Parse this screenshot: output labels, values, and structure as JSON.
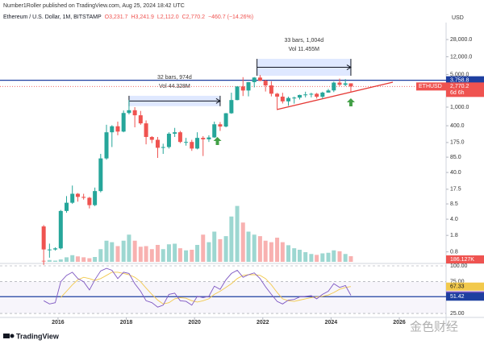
{
  "header": {
    "publisher": "Number1Roller published on TradingView.com, Aug 25, 2024 18:42 UTC",
    "symbol": "Ethereum / U.S. Dollar, 1M, BITSTAMP",
    "ohlc": [
      "O3,231.7",
      "H3,241.9",
      "L2,112.0",
      "C2,770.2",
      "−460.7 (−14.26%)"
    ]
  },
  "footer": {
    "brand": "TradingView",
    "watermark": "金色财经"
  },
  "chart_data": {
    "type": "candlestick",
    "currency": "USD",
    "log_scale": true,
    "grid": false,
    "colors": {
      "up": "#26a69a",
      "down": "#ef5350"
    },
    "xlim": [
      2014.3,
      2027.37
    ],
    "xticks": [
      2016,
      2018,
      2020,
      2022,
      2024,
      2026
    ],
    "ylim": [
      0.646,
      59700
    ],
    "yticks": [
      {
        "value": 28000,
        "label": "28,000.0"
      },
      {
        "value": 12000,
        "label": "12,000.0"
      },
      {
        "value": 5000,
        "label": "5,000.0"
      },
      {
        "value": 1000,
        "label": "1,000.0"
      },
      {
        "value": 400,
        "label": "400.0"
      },
      {
        "value": 175,
        "label": "175.0"
      },
      {
        "value": 85,
        "label": "85.0"
      },
      {
        "value": 40,
        "label": "40.0"
      },
      17.5,
      8.5,
      {
        "value": 4,
        "label": "4.0"
      },
      1.8,
      0.8
    ],
    "x": [
      2015.58,
      2015.75,
      2015.92,
      2016.08,
      2016.25,
      2016.42,
      2016.58,
      2016.75,
      2016.92,
      2017.08,
      2017.25,
      2017.42,
      2017.58,
      2017.75,
      2017.92,
      2018.08,
      2018.25,
      2018.42,
      2018.58,
      2018.75,
      2018.92,
      2019.08,
      2019.25,
      2019.42,
      2019.58,
      2019.75,
      2019.92,
      2020.08,
      2020.25,
      2020.42,
      2020.58,
      2020.75,
      2020.92,
      2021.08,
      2021.25,
      2021.42,
      2021.58,
      2021.75,
      2021.92,
      2022.08,
      2022.25,
      2022.42,
      2022.58,
      2022.75,
      2022.92,
      2023.08,
      2023.25,
      2023.42,
      2023.58,
      2023.75,
      2023.92,
      2024.08,
      2024.25,
      2024.42,
      2024.58
    ],
    "open": [
      2.8,
      0.9,
      0.9,
      0.95,
      6.0,
      9,
      14,
      12,
      11.5,
      8,
      16,
      80,
      290,
      390,
      300,
      750,
      860,
      670,
      450,
      230,
      200,
      135,
      140,
      270,
      290,
      180,
      180,
      130,
      220,
      205,
      225,
      430,
      385,
      740,
      1420,
      2770,
      2270,
      3430,
      4300,
      3680,
      2920,
      1940,
      1680,
      1330,
      1570,
      1600,
      1820,
      1870,
      1930,
      1670,
      2050,
      2280,
      3350,
      3010,
      3231.7
    ],
    "high": [
      3.0,
      1.2,
      1.0,
      6.3,
      12.5,
      21,
      14.5,
      14,
      12,
      19,
      100,
      420,
      410,
      490,
      850,
      1420,
      1000,
      830,
      520,
      240,
      230,
      165,
      290,
      360,
      310,
      220,
      200,
      290,
      240,
      250,
      490,
      480,
      750,
      2040,
      2800,
      4380,
      3450,
      4400,
      4870,
      3880,
      3580,
      2020,
      2030,
      1680,
      1680,
      1850,
      2140,
      2030,
      2020,
      2140,
      2450,
      3520,
      4090,
      3980,
      3241.9
    ],
    "low": [
      0.42,
      0.6,
      0.85,
      0.9,
      5.5,
      8.5,
      9.5,
      10.5,
      6.8,
      7.6,
      15,
      75,
      140,
      250,
      290,
      700,
      370,
      420,
      160,
      170,
      82,
      100,
      130,
      230,
      170,
      150,
      116,
      125,
      90,
      180,
      220,
      310,
      370,
      720,
      1400,
      1730,
      1700,
      2650,
      3600,
      2160,
      1700,
      880,
      1200,
      1070,
      1190,
      1460,
      1620,
      1620,
      1530,
      1520,
      2040,
      2100,
      2820,
      2810,
      2112.0
    ],
    "close": [
      0.9,
      0.9,
      0.95,
      6.0,
      9,
      14,
      12,
      11.5,
      8,
      16,
      80,
      290,
      390,
      300,
      750,
      860,
      670,
      450,
      230,
      200,
      135,
      140,
      270,
      290,
      180,
      180,
      130,
      220,
      205,
      225,
      430,
      385,
      740,
      1420,
      2770,
      2270,
      3430,
      4300,
      3680,
      2920,
      1940,
      1680,
      1330,
      1570,
      1600,
      1820,
      1870,
      1930,
      1670,
      2050,
      2280,
      3350,
      3010,
      3231.7,
      2770.2
    ],
    "volume": {
      "ylim": [
        0,
        2000
      ],
      "values": [
        40,
        60,
        40,
        80,
        150,
        220,
        180,
        150,
        120,
        160,
        420,
        700,
        650,
        520,
        700,
        900,
        700,
        500,
        520,
        420,
        560,
        420,
        580,
        600,
        450,
        380,
        400,
        560,
        900,
        650,
        1000,
        750,
        850,
        1500,
        1850,
        1300,
        1000,
        900,
        850,
        700,
        650,
        800,
        650,
        550,
        450,
        400,
        320,
        260,
        230,
        280,
        300,
        380,
        350,
        260,
        186.127
      ]
    },
    "volume_label": {
      "value": 186.127,
      "label": "186.127K",
      "color": "#ef5350"
    },
    "price_labels": [
      {
        "value": 3758.8,
        "label": "3,758.8",
        "color": "#1e3fa0"
      },
      {
        "value": 2770.2,
        "label": "2,770.2",
        "color": "#ef5350"
      }
    ],
    "symbol_tag": "ETHUSD",
    "countdown": "6d 6h",
    "annotations": [
      {
        "x": [
          2018.08,
          2020.75
        ],
        "y": [
          1050,
          1750
        ],
        "lines": [
          "32 bars, 974d",
          "Vol 44.328M"
        ]
      },
      {
        "x": [
          2021.83,
          2024.58
        ],
        "y": [
          4700,
          10800
        ],
        "lines": [
          "33 bars, 1,004d",
          "Vol 11.455M"
        ]
      }
    ],
    "trendline": {
      "x": [
        2022.41,
        2025.81
      ],
      "y": [
        888,
        3425
      ],
      "color": "#e53935"
    },
    "signals": {
      "x": [
        2020.67,
        2024.58
      ],
      "y": [
        230,
        1548
      ],
      "color": "#43a047"
    },
    "rsi": {
      "ylim": [
        20,
        100
      ],
      "yticks": [
        {
          "value": 100,
          "label": "100.00"
        },
        {
          "value": 75,
          "label": "75.00"
        },
        {
          "value": 25,
          "label": "25.00"
        }
      ],
      "values": [
        45,
        40,
        42,
        75,
        85,
        90,
        80,
        75,
        62,
        78,
        92,
        96,
        93,
        80,
        90,
        88,
        72,
        60,
        45,
        42,
        35,
        38,
        55,
        57,
        45,
        44,
        38,
        52,
        50,
        52,
        68,
        63,
        78,
        88,
        93,
        82,
        86,
        89,
        80,
        67,
        55,
        44,
        40,
        46,
        47,
        51,
        52,
        53,
        48,
        55,
        60,
        72,
        66,
        69,
        53.54
      ],
      "color": "#7e57c2",
      "ma": [
        null,
        null,
        null,
        50,
        60,
        70,
        78,
        82,
        80,
        77,
        80,
        85,
        90,
        90,
        88,
        86,
        82,
        75,
        65,
        55,
        46,
        40,
        42,
        48,
        50,
        49,
        45,
        43,
        45,
        48,
        55,
        60,
        66,
        72,
        80,
        85,
        86,
        86,
        85,
        80,
        70,
        58,
        48,
        45,
        44,
        46,
        48,
        50,
        51,
        52,
        54,
        58,
        63,
        66,
        67.33
      ],
      "ma_color": "#f2c94c",
      "level": {
        "value": 51.42,
        "color": "#1e3fa0"
      }
    }
  }
}
